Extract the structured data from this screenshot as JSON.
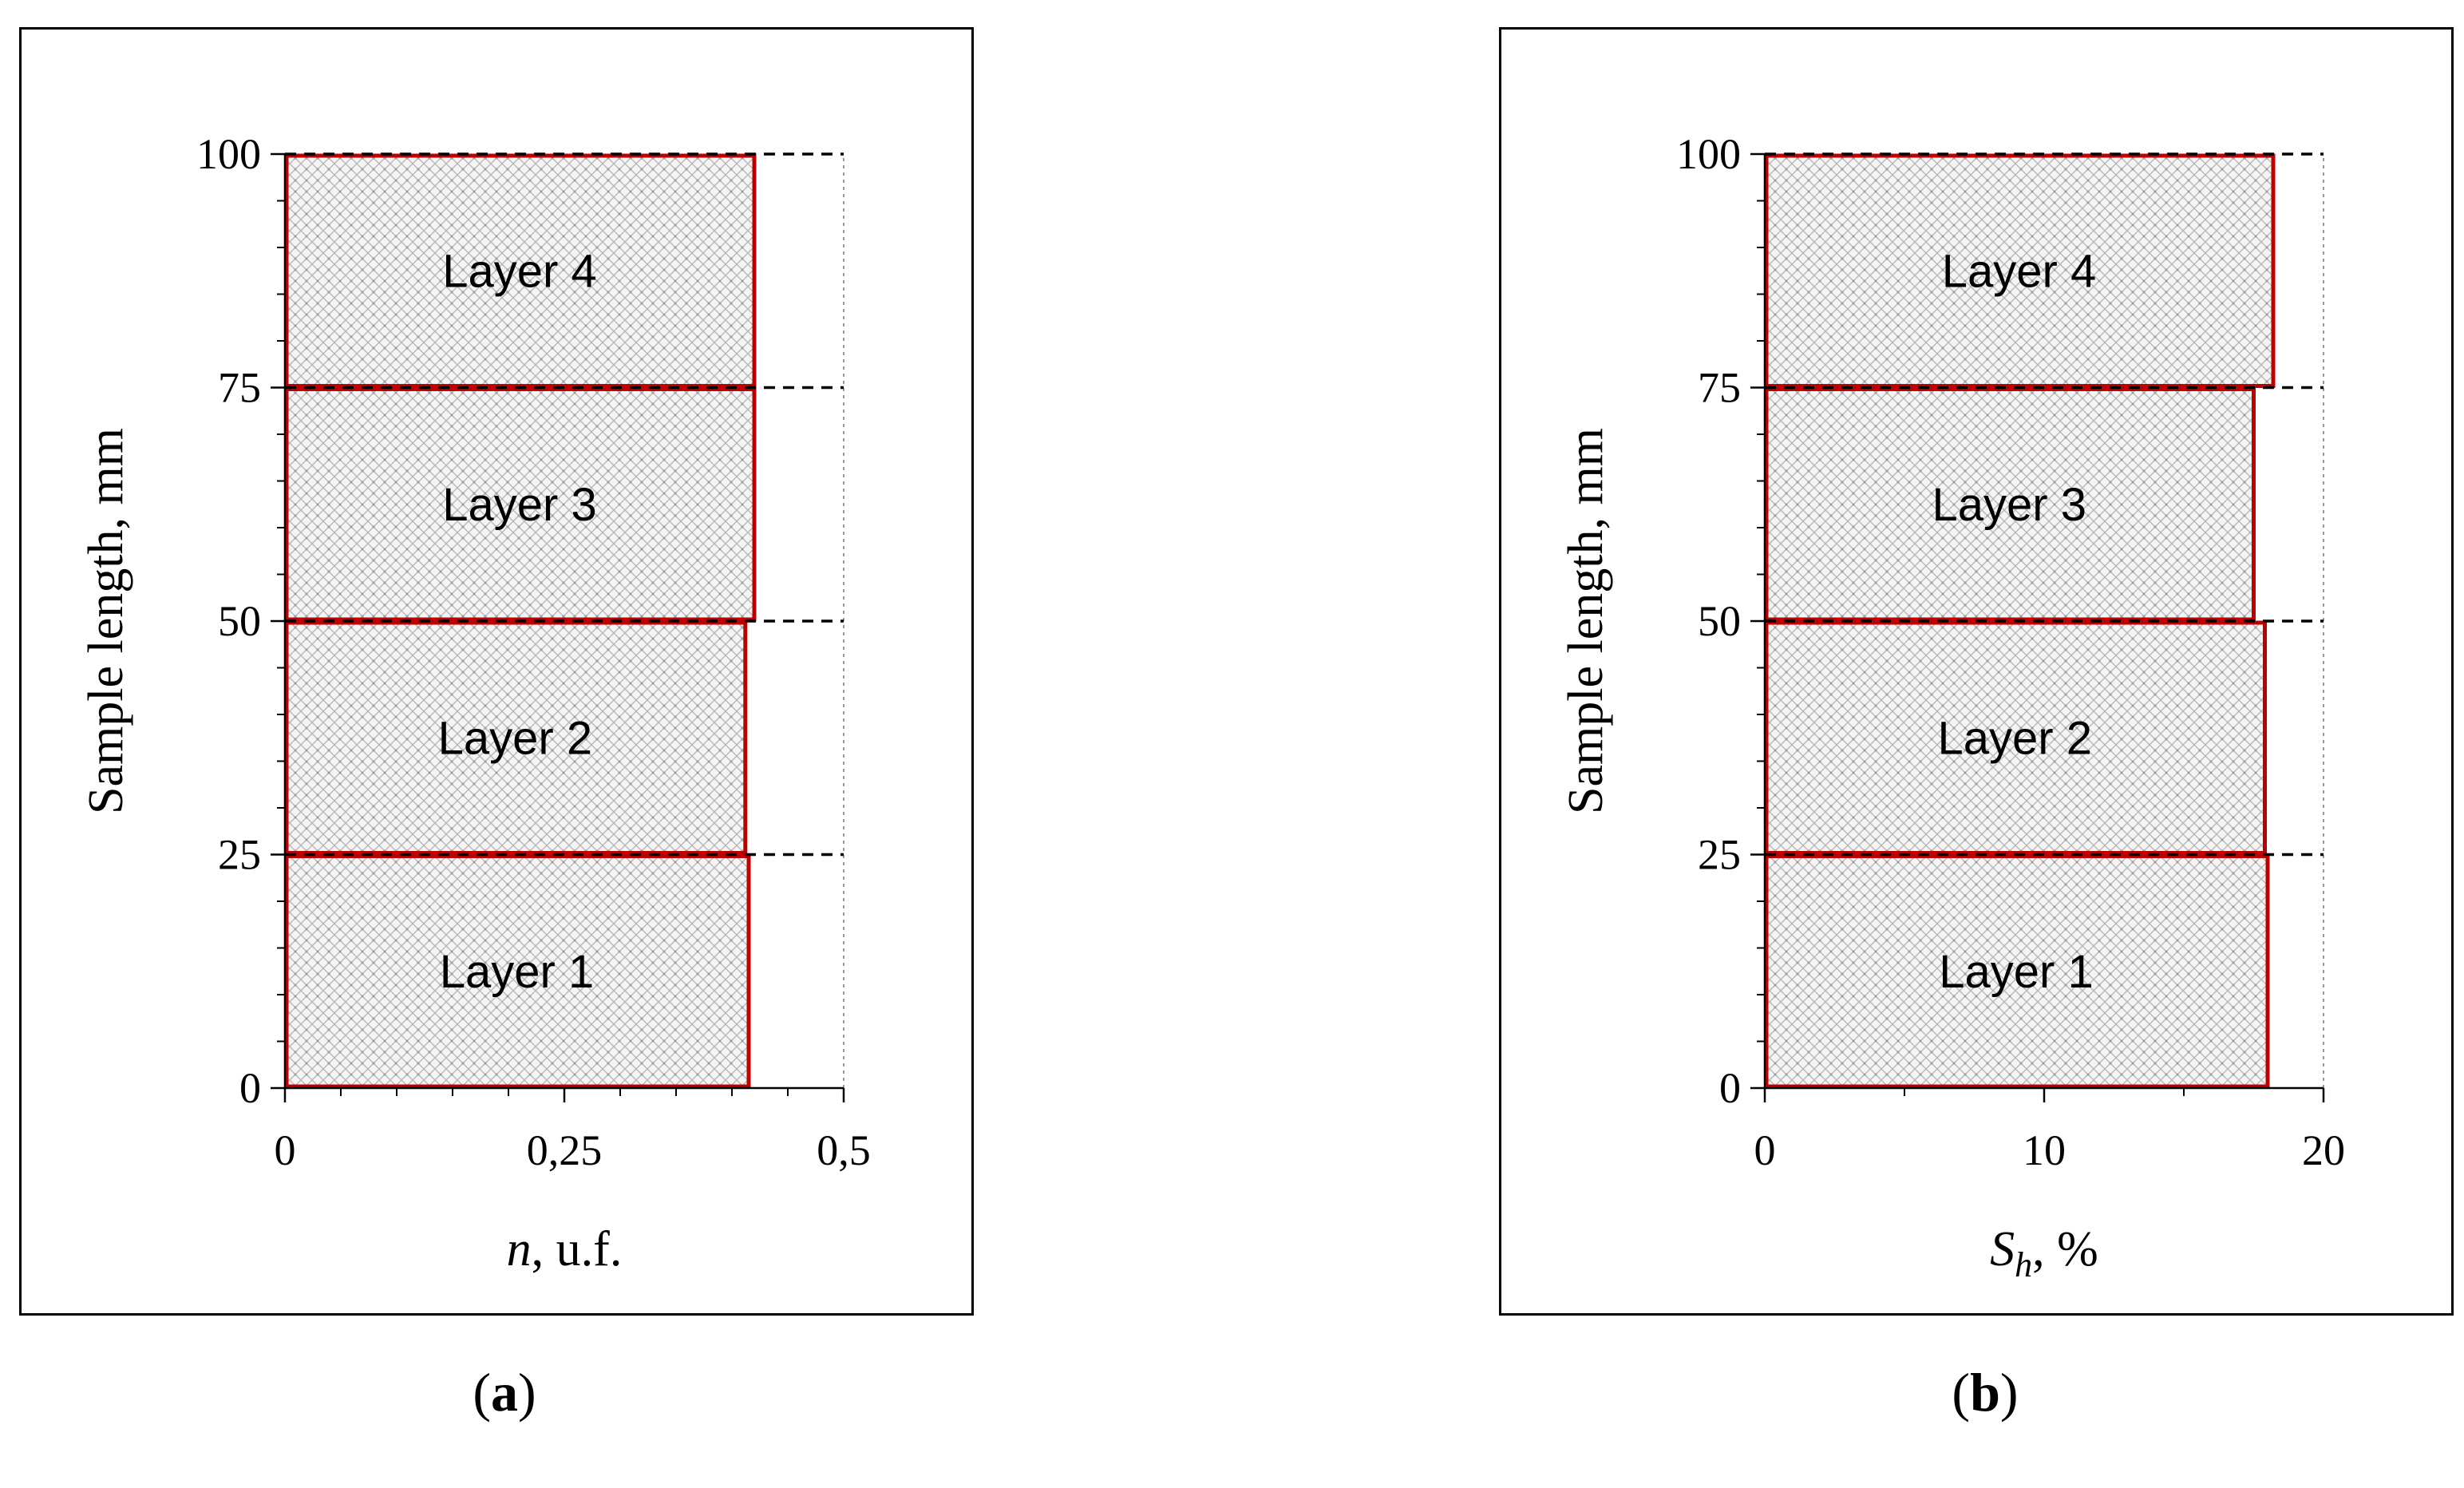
{
  "chart_data": [
    {
      "panel_label": "a",
      "type": "bar",
      "orientation": "horizontal",
      "categories": [
        "Layer 1",
        "Layer 2",
        "Layer 3",
        "Layer 4"
      ],
      "ranges": [
        [
          0,
          25
        ],
        [
          25,
          50
        ],
        [
          50,
          75
        ],
        [
          75,
          100
        ]
      ],
      "values": [
        0.415,
        0.412,
        0.42,
        0.42
      ],
      "xlabel_main": "n",
      "xlabel_suffix": ", u.f.",
      "ylabel": "Sample length, mm",
      "xlim": [
        0,
        0.5
      ],
      "ylim": [
        0,
        100
      ],
      "x_ticks": [
        "0",
        "0,25",
        "0,5"
      ],
      "x_tick_values": [
        0,
        0.25,
        0.5
      ],
      "y_ticks": [
        "0",
        "25",
        "50",
        "75",
        "100"
      ],
      "y_tick_values": [
        0,
        25,
        50,
        75,
        100
      ],
      "x_minor_step": 0.05,
      "y_minor_step": 5,
      "boundaries": [
        25,
        50,
        75,
        100
      ],
      "caption": "a",
      "bar_edge_color": "#c00000"
    },
    {
      "panel_label": "b",
      "type": "bar",
      "orientation": "horizontal",
      "categories": [
        "Layer 1",
        "Layer 2",
        "Layer 3",
        "Layer 4"
      ],
      "ranges": [
        [
          0,
          25
        ],
        [
          25,
          50
        ],
        [
          50,
          75
        ],
        [
          75,
          100
        ]
      ],
      "values": [
        18.0,
        17.9,
        17.5,
        18.2
      ],
      "xlabel_main": "S",
      "xlabel_sub": "h",
      "xlabel_suffix": ", %",
      "ylabel": "Sample length, mm",
      "xlim": [
        0,
        20
      ],
      "ylim": [
        0,
        100
      ],
      "x_ticks": [
        "0",
        "10",
        "20"
      ],
      "x_tick_values": [
        0,
        10,
        20
      ],
      "y_ticks": [
        "0",
        "25",
        "50",
        "75",
        "100"
      ],
      "y_tick_values": [
        0,
        25,
        50,
        75,
        100
      ],
      "x_minor_step": 5,
      "y_minor_step": 5,
      "boundaries": [
        25,
        50,
        75,
        100
      ],
      "caption": "b",
      "bar_edge_color": "#c00000"
    }
  ]
}
